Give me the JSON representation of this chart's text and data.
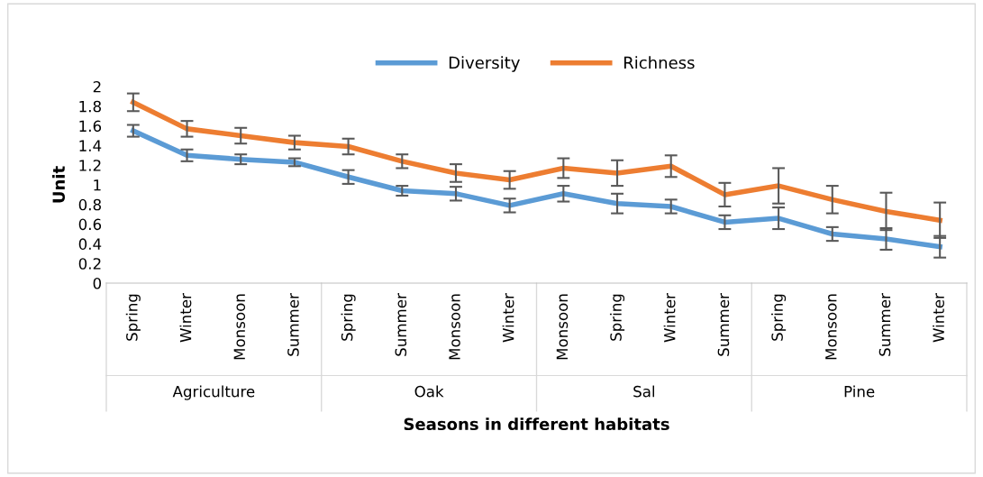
{
  "chart_data": {
    "type": "line",
    "xlabel": "Seasons in different habitats",
    "ylabel": "Unit",
    "categories": [
      "Spring",
      "Winter",
      "Monsoon",
      "Summer",
      "Spring",
      "Summer",
      "Monsoon",
      "Winter",
      "Monsoon",
      "Spring",
      "Winter",
      "Summer",
      "Spring",
      "Monsoon",
      "Summer",
      "Winter"
    ],
    "annotations": [
      "Agriculture",
      "Oak",
      "Sal",
      "Pine"
    ],
    "series": [
      {
        "name": "Diversity",
        "color": "#5b9bd5",
        "values": [
          1.55,
          1.3,
          1.26,
          1.23,
          1.08,
          0.94,
          0.91,
          0.79,
          0.91,
          0.81,
          0.78,
          0.62,
          0.66,
          0.5,
          0.45,
          0.37
        ],
        "errors": [
          0.06,
          0.06,
          0.05,
          0.04,
          0.07,
          0.05,
          0.07,
          0.07,
          0.08,
          0.1,
          0.07,
          0.07,
          0.11,
          0.07,
          0.11,
          0.11
        ]
      },
      {
        "name": "Richness",
        "color": "#ed7d31",
        "values": [
          1.84,
          1.57,
          1.5,
          1.43,
          1.39,
          1.24,
          1.12,
          1.05,
          1.17,
          1.12,
          1.19,
          0.9,
          0.99,
          0.85,
          0.73,
          0.64
        ],
        "errors": [
          0.09,
          0.08,
          0.08,
          0.07,
          0.08,
          0.07,
          0.09,
          0.09,
          0.1,
          0.13,
          0.11,
          0.12,
          0.18,
          0.14,
          0.19,
          0.18
        ]
      }
    ],
    "ylim": [
      0,
      2
    ],
    "yticks": [
      0,
      0.2,
      0.4,
      0.6,
      0.8,
      1,
      1.2,
      1.4,
      1.6,
      1.8,
      2
    ],
    "grid": false,
    "legend": "top",
    "marker": "none",
    "line_style": "solid"
  }
}
